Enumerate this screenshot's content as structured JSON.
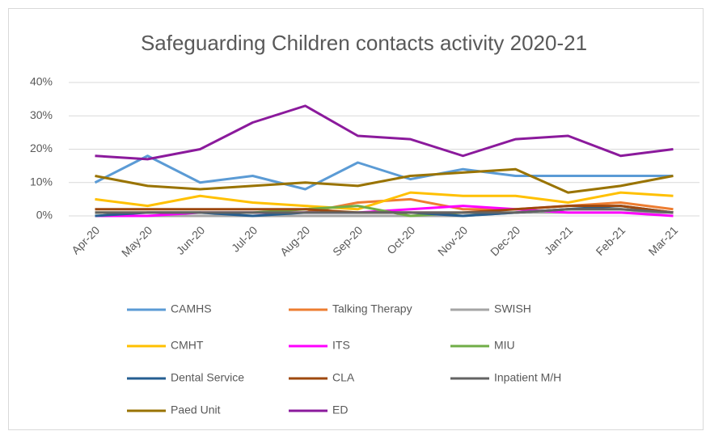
{
  "chart_data": {
    "type": "line",
    "title": "Safeguarding Children contacts activity 2020-21",
    "categories": [
      "Apr-20",
      "May-20",
      "Jun-20",
      "Jul-20",
      "Aug-20",
      "Sep-20",
      "Oct-20",
      "Nov-20",
      "Dec-20",
      "Jan-21",
      "Feb-21",
      "Mar-21"
    ],
    "ylim": [
      0,
      40
    ],
    "yticks": [
      {
        "value": 0,
        "label": "0%"
      },
      {
        "value": 10,
        "label": "10%"
      },
      {
        "value": 20,
        "label": "20%"
      },
      {
        "value": 30,
        "label": "30%"
      },
      {
        "value": 40,
        "label": "40%"
      }
    ],
    "grid": true,
    "legend": "bottom",
    "series": [
      {
        "name": "CAMHS",
        "color": "#5b9bd5",
        "values": [
          10,
          18,
          10,
          12,
          8,
          16,
          11,
          14,
          12,
          12,
          12,
          12
        ]
      },
      {
        "name": "Talking Therapy",
        "color": "#ed7d31",
        "values": [
          1,
          1,
          1,
          1,
          1,
          4,
          5,
          2,
          2,
          3,
          4,
          2
        ]
      },
      {
        "name": "SWISH",
        "color": "#a5a5a5",
        "values": [
          0,
          0,
          0,
          0,
          0,
          0,
          0,
          0,
          1,
          1,
          1,
          1
        ]
      },
      {
        "name": "CMHT",
        "color": "#ffc000",
        "values": [
          5,
          3,
          6,
          4,
          3,
          2,
          7,
          6,
          6,
          4,
          7,
          6
        ]
      },
      {
        "name": "ITS",
        "color": "#ff00ff",
        "values": [
          0,
          0,
          1,
          1,
          1,
          1,
          2,
          3,
          2,
          1,
          1,
          0
        ]
      },
      {
        "name": "MIU",
        "color": "#70ad47",
        "values": [
          1,
          1,
          1,
          1,
          2,
          3,
          0,
          1,
          1,
          2,
          2,
          1
        ]
      },
      {
        "name": "Dental Service",
        "color": "#255e91",
        "values": [
          0,
          1,
          1,
          0,
          1,
          1,
          1,
          0,
          1,
          2,
          3,
          1
        ]
      },
      {
        "name": "CLA",
        "color": "#9e480e",
        "values": [
          2,
          2,
          2,
          2,
          2,
          1,
          1,
          1,
          2,
          3,
          3,
          1
        ]
      },
      {
        "name": "Inpatient M/H",
        "color": "#636363",
        "values": [
          1,
          1,
          1,
          1,
          1,
          1,
          1,
          1,
          1,
          2,
          2,
          1
        ]
      },
      {
        "name": "Paed Unit",
        "color": "#997300",
        "values": [
          12,
          9,
          8,
          9,
          10,
          9,
          12,
          13,
          14,
          7,
          9,
          12
        ]
      },
      {
        "name": "ED",
        "color": "#8b1a9c",
        "values": [
          18,
          17,
          20,
          28,
          33,
          24,
          23,
          18,
          23,
          24,
          18,
          20
        ]
      }
    ]
  }
}
